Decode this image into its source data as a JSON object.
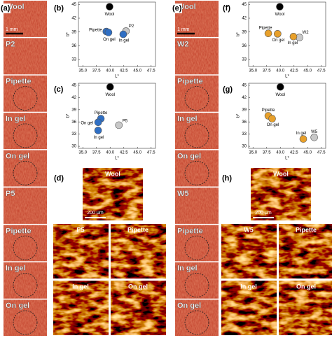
{
  "chart_data": [
    {
      "type": "scatter",
      "panel_label": "(b)",
      "xlabel": "L*",
      "ylabel": "b*",
      "xlim": [
        34.2,
        48.3
      ],
      "ylim": [
        31.5,
        45.5
      ],
      "xticks": [
        {
          "value": 35,
          "label": "35.0"
        },
        37.5,
        {
          "value": 40,
          "label": "40.0"
        },
        42.5,
        {
          "value": 45,
          "label": "45.0"
        },
        47.5
      ],
      "yticks": [
        33,
        36,
        39,
        42,
        45
      ],
      "series": [
        {
          "name": "Wool",
          "color": "#000000",
          "x": [
            39.9
          ],
          "values": [
            44.5
          ]
        },
        {
          "name": "Pipette",
          "color": "#2f6fc4",
          "x": [
            39.3
          ],
          "values": [
            39.1
          ]
        },
        {
          "name": "On gel",
          "color": "#2f6fc4",
          "x": [
            39.7
          ],
          "values": [
            38.9
          ]
        },
        {
          "name": "P2",
          "color": "#c8c8c8",
          "x": [
            42.9
          ],
          "values": [
            39.2
          ]
        },
        {
          "name": "In gel",
          "color": "#2f6fc4",
          "x": [
            42.4
          ],
          "values": [
            38.5
          ]
        }
      ]
    },
    {
      "type": "scatter",
      "panel_label": "(c)",
      "xlabel": "L*",
      "ylabel": "b*",
      "xlim": [
        34.2,
        48.3
      ],
      "ylim": [
        29.5,
        45.5
      ],
      "xticks": [
        {
          "value": 35,
          "label": "35.0"
        },
        37.5,
        {
          "value": 40,
          "label": "40.0"
        },
        42.5,
        {
          "value": 45,
          "label": "45.0"
        },
        47.5
      ],
      "yticks": [
        30,
        33,
        36,
        39,
        42,
        45
      ],
      "series": [
        {
          "name": "Wool",
          "color": "#000000",
          "x": [
            40.0
          ],
          "values": [
            44.6
          ]
        },
        {
          "name": "Pipette",
          "color": "#2f6fc4",
          "x": [
            38.3
          ],
          "values": [
            36.8
          ]
        },
        {
          "name": "On gel",
          "color": "#2f6fc4",
          "x": [
            37.8
          ],
          "values": [
            35.9
          ]
        },
        {
          "name": "In gel",
          "color": "#2f6fc4",
          "x": [
            37.8
          ],
          "values": [
            33.9
          ]
        },
        {
          "name": "P5",
          "color": "#c8c8c8",
          "x": [
            41.6
          ],
          "values": [
            35.2
          ]
        }
      ]
    },
    {
      "type": "scatter",
      "panel_label": "(f)",
      "xlabel": "L*",
      "ylabel": "b*",
      "xlim": [
        34.2,
        48.3
      ],
      "ylim": [
        31.5,
        45.5
      ],
      "xticks": [
        {
          "value": 35,
          "label": "35.0"
        },
        37.5,
        {
          "value": 40,
          "label": "40.0"
        },
        42.5,
        {
          "value": 45,
          "label": "45.0"
        },
        47.5
      ],
      "yticks": [
        33,
        36,
        39,
        42,
        45
      ],
      "series": [
        {
          "name": "Wool",
          "color": "#000000",
          "x": [
            39.9
          ],
          "values": [
            44.5
          ]
        },
        {
          "name": "Pipette",
          "color": "#e8a02a",
          "x": [
            37.8
          ],
          "values": [
            38.7
          ]
        },
        {
          "name": "On gel",
          "color": "#e8a02a",
          "x": [
            39.5
          ],
          "values": [
            38.6
          ]
        },
        {
          "name": "W2",
          "color": "#c8c8c8",
          "x": [
            43.5
          ],
          "values": [
            37.8
          ]
        },
        {
          "name": "In gel",
          "color": "#e8a02a",
          "x": [
            42.4
          ],
          "values": [
            38.0
          ]
        }
      ]
    },
    {
      "type": "scatter",
      "panel_label": "(g)",
      "xlabel": "L*",
      "ylabel": "b*",
      "xlim": [
        34.2,
        48.3
      ],
      "ylim": [
        29.5,
        45.5
      ],
      "xticks": [
        {
          "value": 35,
          "label": "35.0"
        },
        37.5,
        {
          "value": 40,
          "label": "40.0"
        },
        42.5,
        {
          "value": 45,
          "label": "45.0"
        },
        47.5
      ],
      "yticks": [
        30,
        33,
        36,
        39,
        42,
        45
      ],
      "series": [
        {
          "name": "Wool",
          "color": "#000000",
          "x": [
            40.0
          ],
          "values": [
            44.6
          ]
        },
        {
          "name": "Pipette",
          "color": "#e8a02a",
          "x": [
            37.8
          ],
          "values": [
            37.5
          ]
        },
        {
          "name": "On gel",
          "color": "#e8a02a",
          "x": [
            38.5
          ],
          "values": [
            36.8
          ]
        },
        {
          "name": "In gel",
          "color": "#e8a02a",
          "x": [
            44.2
          ],
          "values": [
            31.8
          ]
        },
        {
          "name": "W5",
          "color": "#c8c8c8",
          "x": [
            46.2
          ],
          "values": [
            32.2
          ]
        }
      ]
    }
  ],
  "strips": [
    {
      "label": "(a)",
      "scale": "1 mm",
      "tiles": [
        "Wool",
        "P2",
        "Pipette",
        "In gel",
        "On gel",
        "P5",
        "Pipette",
        "In gel",
        "On gel"
      ]
    },
    {
      "label": "(e)",
      "scale": "1 mm",
      "tiles": [
        "Wool",
        "W2",
        "Pipette",
        "In gel",
        "On gel",
        "W5",
        "Pipette",
        "In gel",
        "On gel"
      ]
    }
  ],
  "micrographs": [
    {
      "label": "(d)",
      "top": "Wool",
      "scale": "200 μm",
      "tiles": [
        "P5",
        "Pipette",
        "In gel",
        "On gel"
      ]
    },
    {
      "label": "(h)",
      "top": "Wool",
      "scale": "200 μm",
      "tiles": [
        "W5",
        "Pipette",
        "In gel",
        "On gel"
      ]
    }
  ]
}
